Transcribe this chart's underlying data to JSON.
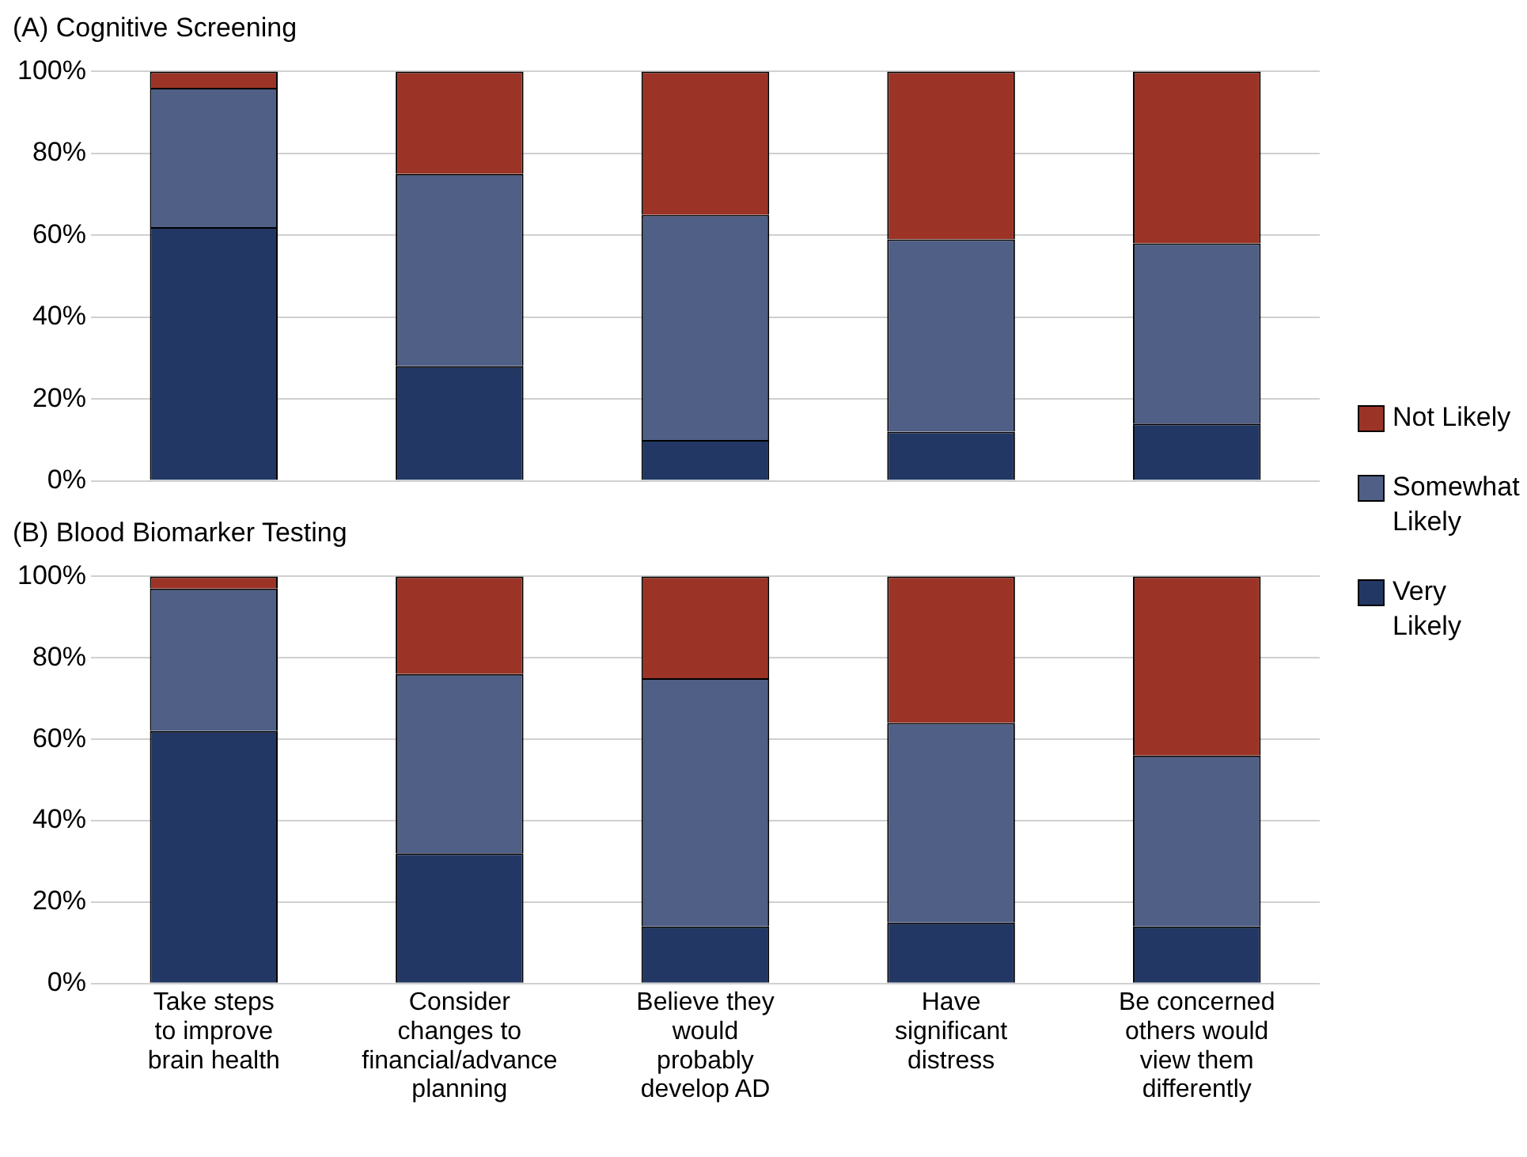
{
  "chart_data": [
    {
      "type": "bar",
      "title": "(A) Cognitive Screening",
      "stacked": true,
      "categories": [
        null,
        null,
        null,
        null,
        null
      ],
      "ylim": [
        0,
        100
      ],
      "yticks": [
        {
          "value": 0,
          "label": "0%"
        },
        {
          "value": 20,
          "label": "20%"
        },
        {
          "value": 40,
          "label": "40%"
        },
        {
          "value": 60,
          "label": "60%"
        },
        {
          "value": 80,
          "label": "80%"
        },
        {
          "value": 100,
          "label": "100%"
        }
      ],
      "grid": "y",
      "legend": "right",
      "tick_labels": "y",
      "series": [
        {
          "name": "Very Likely",
          "color": "#223763",
          "values": [
            62,
            28,
            10,
            12,
            14
          ]
        },
        {
          "name": "Somewhat Likely",
          "color": "#4f5f86",
          "values": [
            34,
            47,
            55,
            47,
            44
          ]
        },
        {
          "name": "Not Likely",
          "color": "#9b3426",
          "values": [
            4,
            25,
            35,
            41,
            42
          ]
        }
      ]
    },
    {
      "type": "bar",
      "title": "(B) Blood Biomarker Testing",
      "stacked": true,
      "categories": [
        "Take steps to improve brain health",
        "Consider changes to financial/advance planning",
        "Believe they would probably develop AD",
        "Have significant distress",
        "Be concerned others would view them differently"
      ],
      "ylim": [
        0,
        100
      ],
      "yticks": [
        {
          "value": 0,
          "label": "0%"
        },
        {
          "value": 20,
          "label": "20%"
        },
        {
          "value": 40,
          "label": "40%"
        },
        {
          "value": 60,
          "label": "60%"
        },
        {
          "value": 80,
          "label": "80%"
        },
        {
          "value": 100,
          "label": "100%"
        }
      ],
      "grid": "y",
      "series": [
        {
          "color": "#223763",
          "values": [
            62,
            32,
            14,
            15,
            14
          ]
        },
        {
          "color": "#4f5f86",
          "values": [
            35,
            44,
            61,
            49,
            42
          ]
        },
        {
          "color": "#9b3426",
          "values": [
            3,
            24,
            25,
            36,
            44
          ]
        }
      ]
    }
  ]
}
